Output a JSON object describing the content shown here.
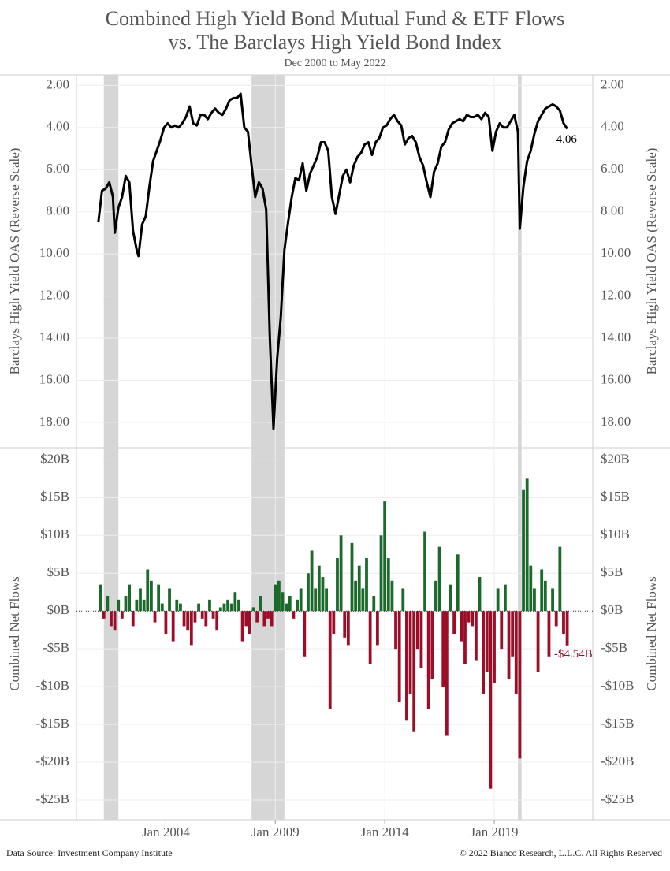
{
  "title": "Combined High Yield Bond Mutual Fund & ETF Flows",
  "title_line2": "vs. The Barclays High Yield Bond Index",
  "subtitle": "Dec 2000 to May 2022",
  "footer_left": "Data Source: Investment Company Institute",
  "footer_right": "© 2022 Bianco Research, L.L.C. All Rights Reserved",
  "chart_data": [
    {
      "type": "line",
      "ylabel": "Barclays High Yield OAS (Reverse Scale)",
      "reverse": true,
      "ylim": [
        1.5,
        19.2
      ],
      "yticks": [
        {
          "value": 2,
          "label": "2.00"
        },
        {
          "value": 4,
          "label": "4.00"
        },
        {
          "value": 6,
          "label": "6.00"
        },
        {
          "value": 8,
          "label": "8.00"
        },
        {
          "value": 10,
          "label": "10.00"
        },
        {
          "value": 12,
          "label": "12.00"
        },
        {
          "value": 14,
          "label": "14.00"
        },
        {
          "value": 16,
          "label": "16.00"
        },
        {
          "value": 18,
          "label": "18.00"
        }
      ],
      "xlim": [
        "1999-12",
        "2023-07"
      ],
      "xticks": [
        {
          "value": "2004-01",
          "label": "Jan 2004"
        },
        {
          "value": "2009-01",
          "label": "Jan 2009"
        },
        {
          "value": "2014-01",
          "label": "Jan 2014"
        },
        {
          "value": "2019-01",
          "label": "Jan 2019"
        }
      ],
      "shaded": [
        [
          "2001-03",
          "2001-11"
        ],
        [
          "2007-12",
          "2009-06"
        ],
        [
          "2020-02",
          "2020-04"
        ]
      ],
      "grid": true,
      "x": [
        "2000-12",
        "2001-02",
        "2001-04",
        "2001-06",
        "2001-08",
        "2001-09",
        "2001-11",
        "2002-01",
        "2002-03",
        "2002-05",
        "2002-07",
        "2002-09",
        "2002-10",
        "2002-12",
        "2003-02",
        "2003-04",
        "2003-06",
        "2003-08",
        "2003-10",
        "2003-12",
        "2004-02",
        "2004-04",
        "2004-06",
        "2004-08",
        "2004-10",
        "2004-12",
        "2005-02",
        "2005-04",
        "2005-06",
        "2005-08",
        "2005-10",
        "2005-12",
        "2006-02",
        "2006-04",
        "2006-06",
        "2006-08",
        "2006-10",
        "2006-12",
        "2007-02",
        "2007-04",
        "2007-06",
        "2007-08",
        "2007-10",
        "2007-12",
        "2008-02",
        "2008-04",
        "2008-06",
        "2008-08",
        "2008-10",
        "2008-12",
        "2009-02",
        "2009-04",
        "2009-06",
        "2009-08",
        "2009-10",
        "2009-12",
        "2010-02",
        "2010-04",
        "2010-06",
        "2010-08",
        "2010-10",
        "2010-12",
        "2011-02",
        "2011-04",
        "2011-06",
        "2011-08",
        "2011-10",
        "2011-12",
        "2012-02",
        "2012-04",
        "2012-06",
        "2012-08",
        "2012-10",
        "2012-12",
        "2013-02",
        "2013-04",
        "2013-06",
        "2013-08",
        "2013-10",
        "2013-12",
        "2014-02",
        "2014-04",
        "2014-06",
        "2014-08",
        "2014-10",
        "2014-12",
        "2015-02",
        "2015-04",
        "2015-06",
        "2015-08",
        "2015-10",
        "2015-12",
        "2016-02",
        "2016-04",
        "2016-06",
        "2016-08",
        "2016-10",
        "2016-12",
        "2017-02",
        "2017-04",
        "2017-06",
        "2017-08",
        "2017-10",
        "2017-12",
        "2018-02",
        "2018-04",
        "2018-06",
        "2018-08",
        "2018-10",
        "2018-12",
        "2019-02",
        "2019-04",
        "2019-06",
        "2019-08",
        "2019-10",
        "2019-12",
        "2020-02",
        "2020-03",
        "2020-05",
        "2020-07",
        "2020-09",
        "2020-11",
        "2021-01",
        "2021-03",
        "2021-05",
        "2021-07",
        "2021-09",
        "2021-11",
        "2022-01",
        "2022-03",
        "2022-05"
      ],
      "series": [
        {
          "name": "Barclays High Yield OAS",
          "color": "#000000",
          "values": [
            8.5,
            7.0,
            6.9,
            6.6,
            7.3,
            9.0,
            7.8,
            7.3,
            6.3,
            6.6,
            8.9,
            9.8,
            10.1,
            8.6,
            8.2,
            6.8,
            5.6,
            5.1,
            4.6,
            4.0,
            3.8,
            4.0,
            3.9,
            4.0,
            3.8,
            3.5,
            3.0,
            3.8,
            3.9,
            3.4,
            3.4,
            3.6,
            3.3,
            3.1,
            3.3,
            3.4,
            3.1,
            2.7,
            2.6,
            2.6,
            2.4,
            4.0,
            4.2,
            5.8,
            7.3,
            6.6,
            6.9,
            7.9,
            14.0,
            18.3,
            15.0,
            13.0,
            9.8,
            8.5,
            7.3,
            6.4,
            6.5,
            5.7,
            7.0,
            6.2,
            5.8,
            5.4,
            4.7,
            4.7,
            5.1,
            7.3,
            8.1,
            7.2,
            6.3,
            6.0,
            6.6,
            5.8,
            5.4,
            5.2,
            4.8,
            4.7,
            5.3,
            4.7,
            4.5,
            4.0,
            3.9,
            3.6,
            3.4,
            3.7,
            3.9,
            4.8,
            4.5,
            4.4,
            4.7,
            5.4,
            5.8,
            6.6,
            7.3,
            6.1,
            5.7,
            4.9,
            4.7,
            4.1,
            3.8,
            3.7,
            3.6,
            3.7,
            3.4,
            3.5,
            3.5,
            3.4,
            3.6,
            3.3,
            3.5,
            5.1,
            4.2,
            3.8,
            4.0,
            4.0,
            3.7,
            3.4,
            4.2,
            8.8,
            6.8,
            5.6,
            5.1,
            4.3,
            3.7,
            3.4,
            3.1,
            3.0,
            2.9,
            3.0,
            3.2,
            3.8,
            4.06
          ]
        }
      ]
    },
    {
      "type": "bar",
      "ylabel": "Combined Net Flows",
      "ylim": [
        -27.6,
        21.6
      ],
      "yticks": [
        {
          "value": -25,
          "label": "-$25B"
        },
        {
          "value": -20,
          "label": "-$20B"
        },
        {
          "value": -15,
          "label": "-$15B"
        },
        {
          "value": -10,
          "label": "-$10B"
        },
        {
          "value": -5,
          "label": "-$5B"
        },
        {
          "value": 0,
          "label": "$0B"
        },
        {
          "value": 5,
          "label": "$5B"
        },
        {
          "value": 10,
          "label": "$10B"
        },
        {
          "value": 15,
          "label": "$15B"
        },
        {
          "value": 20,
          "label": "$20B"
        }
      ],
      "xlim": [
        "1999-12",
        "2023-07"
      ],
      "xticks": [
        {
          "value": "2004-01",
          "label": "Jan 2004"
        },
        {
          "value": "2009-01",
          "label": "Jan 2009"
        },
        {
          "value": "2014-01",
          "label": "Jan 2014"
        },
        {
          "value": "2019-01",
          "label": "Jan 2019"
        }
      ],
      "shaded": [
        [
          "2001-03",
          "2001-11"
        ],
        [
          "2007-12",
          "2009-06"
        ],
        [
          "2020-02",
          "2020-04"
        ]
      ],
      "grid": true,
      "zero_line": true,
      "positive_color": "#1b6a2c",
      "negative_color": "#9c0d28",
      "x": [
        "2001-01",
        "2001-03",
        "2001-05",
        "2001-07",
        "2001-09",
        "2001-11",
        "2002-01",
        "2002-03",
        "2002-05",
        "2002-07",
        "2002-09",
        "2002-11",
        "2003-01",
        "2003-03",
        "2003-05",
        "2003-07",
        "2003-09",
        "2003-11",
        "2004-01",
        "2004-03",
        "2004-05",
        "2004-07",
        "2004-09",
        "2004-11",
        "2005-01",
        "2005-03",
        "2005-05",
        "2005-07",
        "2005-09",
        "2005-11",
        "2006-01",
        "2006-03",
        "2006-05",
        "2006-07",
        "2006-09",
        "2006-11",
        "2007-01",
        "2007-03",
        "2007-05",
        "2007-07",
        "2007-09",
        "2007-11",
        "2008-01",
        "2008-03",
        "2008-05",
        "2008-07",
        "2008-09",
        "2008-11",
        "2009-01",
        "2009-03",
        "2009-05",
        "2009-07",
        "2009-09",
        "2009-11",
        "2010-01",
        "2010-03",
        "2010-05",
        "2010-07",
        "2010-09",
        "2010-11",
        "2011-01",
        "2011-03",
        "2011-05",
        "2011-07",
        "2011-09",
        "2011-11",
        "2012-01",
        "2012-03",
        "2012-05",
        "2012-07",
        "2012-09",
        "2012-11",
        "2013-01",
        "2013-03",
        "2013-05",
        "2013-07",
        "2013-09",
        "2013-11",
        "2014-01",
        "2014-03",
        "2014-05",
        "2014-07",
        "2014-09",
        "2014-11",
        "2015-01",
        "2015-03",
        "2015-05",
        "2015-07",
        "2015-09",
        "2015-11",
        "2016-01",
        "2016-03",
        "2016-05",
        "2016-07",
        "2016-09",
        "2016-11",
        "2017-01",
        "2017-03",
        "2017-05",
        "2017-07",
        "2017-09",
        "2017-11",
        "2018-01",
        "2018-03",
        "2018-05",
        "2018-07",
        "2018-09",
        "2018-11",
        "2019-01",
        "2019-03",
        "2019-05",
        "2019-07",
        "2019-09",
        "2019-11",
        "2020-01",
        "2020-03",
        "2020-05",
        "2020-07",
        "2020-09",
        "2020-11",
        "2021-01",
        "2021-03",
        "2021-05",
        "2021-07",
        "2021-09",
        "2021-11",
        "2022-01",
        "2022-03",
        "2022-05"
      ],
      "values": [
        3.5,
        -1,
        2,
        -2,
        -2.5,
        1.5,
        -1,
        2,
        3.5,
        -2,
        1.5,
        3,
        1.5,
        5.5,
        4,
        -1.5,
        3.5,
        1,
        -3,
        3,
        -4,
        1.5,
        1,
        -2,
        -2.5,
        -4.5,
        -1.5,
        1,
        -1,
        -2,
        1.5,
        -1,
        -2.5,
        0.5,
        1,
        1.5,
        1,
        2.5,
        1.5,
        -4,
        -2,
        -3,
        0.5,
        -1.5,
        2,
        -2,
        -1,
        -2,
        3.5,
        4,
        2.5,
        1,
        2,
        -1,
        1.5,
        3,
        -6,
        5,
        8,
        3,
        6,
        4.5,
        3,
        -13,
        -3,
        7,
        10,
        -3.5,
        -4.5,
        9,
        4,
        6,
        3,
        7,
        -7,
        2,
        -4.5,
        10,
        14.5,
        7,
        4,
        -5,
        -12,
        3,
        -14.5,
        -11,
        -16,
        -5,
        -7.5,
        10.5,
        -13,
        -9,
        4,
        8.5,
        -10,
        -16.5,
        3.5,
        -3,
        7.5,
        -4,
        -7,
        -1.5,
        -2,
        -6.5,
        4.5,
        -11,
        -8,
        -23.5,
        -9.5,
        3,
        -5,
        3.5,
        -9,
        -6,
        -11,
        -19.5,
        16,
        17.5,
        6,
        3,
        -8,
        5.5,
        4,
        -6,
        3,
        -2,
        8.5,
        -3,
        -4.54
      ],
      "value_labels": [
        null,
        null,
        null,
        null,
        null,
        null,
        null,
        null,
        null,
        null,
        null,
        null,
        null,
        null,
        null,
        null,
        null,
        null,
        null,
        null,
        null,
        null,
        null,
        null,
        null,
        null,
        null,
        null,
        null,
        null,
        null,
        null,
        null,
        null,
        null,
        null,
        null,
        null,
        null,
        null,
        null,
        null,
        null,
        null,
        null,
        null,
        null,
        null,
        null,
        null,
        null,
        null,
        null,
        null,
        null,
        null,
        null,
        null,
        null,
        null,
        null,
        null,
        null,
        null,
        null,
        null,
        null,
        null,
        null,
        null,
        null,
        null,
        null,
        null,
        null,
        null,
        null,
        null,
        null,
        null,
        null,
        null,
        null,
        null,
        null,
        null,
        null,
        null,
        null,
        null,
        null,
        null,
        null,
        null,
        null,
        null,
        null,
        null,
        null,
        null,
        null,
        null,
        null,
        null,
        null,
        null,
        null,
        null,
        null,
        null,
        null,
        null,
        null,
        null,
        null,
        null,
        null,
        null,
        null,
        null,
        null,
        null,
        null,
        null,
        null,
        null,
        null,
        null,
        "-$4.54B"
      ]
    }
  ]
}
